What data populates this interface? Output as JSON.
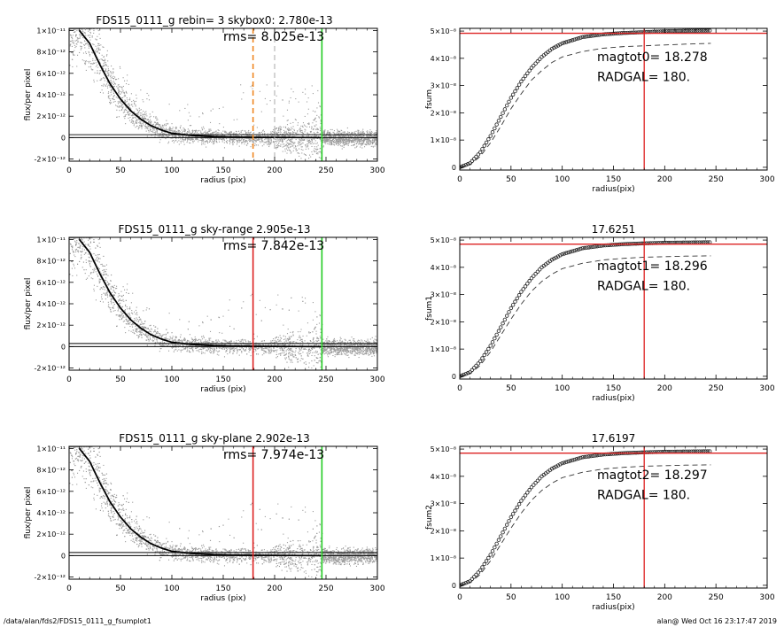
{
  "footer": {
    "left": "/data/alan/fds2/FDS15_0111_g_fsumplot1",
    "right": "alan@  Wed Oct 16 23:17:47 2019"
  },
  "colors": {
    "scatter": "#9a9a9a",
    "profile": "#000000",
    "red_line": "#dd2222",
    "orange_line": "#ee8822",
    "green_line": "#22cc22",
    "gray_dash": "#aaaaaa"
  },
  "chart_data": [
    {
      "type": "scatter",
      "title": "FDS15_0111_g rebin= 3    skybox0:  2.780e-13",
      "annotation": "rms= 8.025e-13",
      "xlabel": "radius (pix)",
      "ylabel": "flux/per pixel",
      "xlim": [
        0,
        300
      ],
      "ylim": [
        -2.2e-12,
        1.02e-11
      ],
      "xticks": [
        "0",
        "50",
        "100",
        "150",
        "200",
        "250",
        "300"
      ],
      "yticks": [
        "-2×10⁻¹²",
        "0",
        "2×10⁻¹²",
        "4×10⁻¹²",
        "6×10⁻¹²",
        "8×10⁻¹²",
        "1×10⁻¹¹"
      ],
      "ytick_values": [
        -2e-12,
        0,
        2e-12,
        4e-12,
        6e-12,
        8e-12,
        1e-11
      ],
      "sky_level": 2.78e-13,
      "profile": {
        "x": [
          10,
          20,
          30,
          40,
          50,
          60,
          70,
          80,
          90,
          100,
          120,
          140,
          160,
          180,
          200,
          220,
          245
        ],
        "y": [
          1e-11,
          8.8e-12,
          6.8e-12,
          5e-12,
          3.6e-12,
          2.5e-12,
          1.7e-12,
          1.1e-12,
          7e-13,
          4e-13,
          2e-13,
          1e-13,
          5e-14,
          3e-14,
          2e-14,
          1e-14,
          0
        ]
      },
      "vlines": [
        {
          "x": 179,
          "style": "dashed-orange"
        },
        {
          "x": 200,
          "style": "dashed-gray"
        },
        {
          "x": 246,
          "style": "solid-green"
        }
      ]
    },
    {
      "type": "line",
      "title": "",
      "xlabel": "radius(pix)",
      "ylabel": "fsum",
      "xlim": [
        0,
        300
      ],
      "ylim": [
        -1e-09,
        5.1e-08
      ],
      "xticks": [
        "0",
        "50",
        "100",
        "150",
        "200",
        "250",
        "300"
      ],
      "yticks": [
        "0",
        "1×10⁻⁸",
        "2×10⁻⁸",
        "3×10⁻⁸",
        "4×10⁻⁸",
        "5×10⁻⁸"
      ],
      "ytick_values": [
        0,
        1e-08,
        2e-08,
        3e-08,
        4e-08,
        5e-08
      ],
      "texts": [
        "magtot0=  18.278",
        "RADGAL=    180."
      ],
      "hline": 4.92e-08,
      "vline": 180,
      "curve": {
        "x": [
          0,
          10,
          20,
          30,
          40,
          50,
          60,
          70,
          80,
          90,
          100,
          120,
          140,
          160,
          180,
          200,
          220,
          245
        ],
        "y": [
          0,
          1.5e-09,
          5.5e-09,
          1.15e-08,
          1.85e-08,
          2.55e-08,
          3.15e-08,
          3.65e-08,
          4.05e-08,
          4.35e-08,
          4.55e-08,
          4.78e-08,
          4.88e-08,
          4.93e-08,
          4.96e-08,
          4.99e-08,
          5.01e-08,
          5.02e-08
        ]
      },
      "dashed": {
        "x": [
          0,
          10,
          20,
          30,
          40,
          50,
          60,
          70,
          80,
          90,
          100,
          120,
          140,
          160,
          180,
          200,
          220,
          245
        ],
        "y": [
          0,
          1e-09,
          4e-09,
          9e-09,
          1.5e-08,
          2.15e-08,
          2.7e-08,
          3.2e-08,
          3.55e-08,
          3.85e-08,
          4.05e-08,
          4.25e-08,
          4.37e-08,
          4.43e-08,
          4.46e-08,
          4.49e-08,
          4.52e-08,
          4.55e-08
        ]
      }
    },
    {
      "type": "scatter",
      "title": "FDS15_0111_g sky-range  2.905e-13",
      "annotation": "rms= 7.842e-13",
      "xlabel": "radius (pix)",
      "ylabel": "flux/per pixel",
      "xlim": [
        0,
        300
      ],
      "ylim": [
        -2.2e-12,
        1.02e-11
      ],
      "xticks": [
        "0",
        "50",
        "100",
        "150",
        "200",
        "250",
        "300"
      ],
      "yticks": [
        "-2×10⁻¹²",
        "0",
        "2×10⁻¹²",
        "4×10⁻¹²",
        "6×10⁻¹²",
        "8×10⁻¹²",
        "1×10⁻¹¹"
      ],
      "ytick_values": [
        -2e-12,
        0,
        2e-12,
        4e-12,
        6e-12,
        8e-12,
        1e-11
      ],
      "sky_level": 2.905e-13,
      "profile": {
        "x": [
          10,
          20,
          30,
          40,
          50,
          60,
          70,
          80,
          90,
          100,
          120,
          140,
          160,
          180,
          200,
          220,
          245
        ],
        "y": [
          1e-11,
          8.8e-12,
          6.8e-12,
          5e-12,
          3.6e-12,
          2.5e-12,
          1.7e-12,
          1.1e-12,
          7e-13,
          4e-13,
          2e-13,
          1e-13,
          5e-14,
          3e-14,
          2e-14,
          1e-14,
          0
        ]
      },
      "vlines": [
        {
          "x": 179,
          "style": "solid-red"
        },
        {
          "x": 246,
          "style": "solid-green"
        }
      ]
    },
    {
      "type": "line",
      "title": "17.6251",
      "xlabel": "radius(pix)",
      "ylabel": "fsum1",
      "xlim": [
        0,
        300
      ],
      "ylim": [
        -1e-09,
        5.1e-08
      ],
      "xticks": [
        "0",
        "50",
        "100",
        "150",
        "200",
        "250",
        "300"
      ],
      "yticks": [
        "0",
        "1×10⁻⁸",
        "2×10⁻⁸",
        "3×10⁻⁸",
        "4×10⁻⁸",
        "5×10⁻⁸"
      ],
      "ytick_values": [
        0,
        1e-08,
        2e-08,
        3e-08,
        4e-08,
        5e-08
      ],
      "texts": [
        "magtot1=  18.296",
        "RADGAL=    180."
      ],
      "hline": 4.85e-08,
      "vline": 180,
      "curve": {
        "x": [
          0,
          10,
          20,
          30,
          40,
          50,
          60,
          70,
          80,
          90,
          100,
          120,
          140,
          160,
          180,
          200,
          220,
          245
        ],
        "y": [
          0,
          1.5e-09,
          5.5e-09,
          1.12e-08,
          1.8e-08,
          2.5e-08,
          3.1e-08,
          3.6e-08,
          4e-08,
          4.28e-08,
          4.48e-08,
          4.7e-08,
          4.8e-08,
          4.85e-08,
          4.88e-08,
          4.9e-08,
          4.91e-08,
          4.92e-08
        ]
      },
      "dashed": {
        "x": [
          0,
          10,
          20,
          30,
          40,
          50,
          60,
          70,
          80,
          90,
          100,
          120,
          140,
          160,
          180,
          200,
          220,
          245
        ],
        "y": [
          0,
          1e-09,
          4e-09,
          9e-09,
          1.5e-08,
          2.1e-08,
          2.65e-08,
          3.12e-08,
          3.48e-08,
          3.75e-08,
          3.95e-08,
          4.15e-08,
          4.27e-08,
          4.33e-08,
          4.37e-08,
          4.39e-08,
          4.41e-08,
          4.42e-08
        ]
      }
    },
    {
      "type": "scatter",
      "title": "FDS15_0111_g sky-plane  2.902e-13",
      "annotation": "rms= 7.974e-13",
      "xlabel": "radius (pix)",
      "ylabel": "flux/per pixel",
      "xlim": [
        0,
        300
      ],
      "ylim": [
        -2.2e-12,
        1.02e-11
      ],
      "xticks": [
        "0",
        "50",
        "100",
        "150",
        "200",
        "250",
        "300"
      ],
      "yticks": [
        "-2×10⁻¹²",
        "0",
        "2×10⁻¹²",
        "4×10⁻¹²",
        "6×10⁻¹²",
        "8×10⁻¹²",
        "1×10⁻¹¹"
      ],
      "ytick_values": [
        -2e-12,
        0,
        2e-12,
        4e-12,
        6e-12,
        8e-12,
        1e-11
      ],
      "sky_level": 2.902e-13,
      "profile": {
        "x": [
          10,
          20,
          30,
          40,
          50,
          60,
          70,
          80,
          90,
          100,
          120,
          140,
          160,
          180,
          200,
          220,
          245
        ],
        "y": [
          1e-11,
          8.8e-12,
          6.8e-12,
          5e-12,
          3.6e-12,
          2.5e-12,
          1.7e-12,
          1.1e-12,
          7e-13,
          4e-13,
          2e-13,
          1e-13,
          5e-14,
          3e-14,
          2e-14,
          1e-14,
          0
        ]
      },
      "vlines": [
        {
          "x": 179,
          "style": "solid-red"
        },
        {
          "x": 246,
          "style": "solid-green"
        }
      ]
    },
    {
      "type": "line",
      "title": "17.6197",
      "xlabel": "radius(pix)",
      "ylabel": "fsum2",
      "xlim": [
        0,
        300
      ],
      "ylim": [
        -1e-09,
        5.1e-08
      ],
      "xticks": [
        "0",
        "50",
        "100",
        "150",
        "200",
        "250",
        "300"
      ],
      "yticks": [
        "0",
        "1×10⁻⁸",
        "2×10⁻⁸",
        "3×10⁻⁸",
        "4×10⁻⁸",
        "5×10⁻⁸"
      ],
      "ytick_values": [
        0,
        1e-08,
        2e-08,
        3e-08,
        4e-08,
        5e-08
      ],
      "texts": [
        "magtot2=  18.297",
        "RADGAL=    180."
      ],
      "hline": 4.85e-08,
      "vline": 180,
      "curve": {
        "x": [
          0,
          10,
          20,
          30,
          40,
          50,
          60,
          70,
          80,
          90,
          100,
          120,
          140,
          160,
          180,
          200,
          220,
          245
        ],
        "y": [
          0,
          1.5e-09,
          5.5e-09,
          1.12e-08,
          1.8e-08,
          2.5e-08,
          3.1e-08,
          3.6e-08,
          4e-08,
          4.28e-08,
          4.48e-08,
          4.7e-08,
          4.8e-08,
          4.85e-08,
          4.88e-08,
          4.9e-08,
          4.91e-08,
          4.92e-08
        ]
      },
      "dashed": {
        "x": [
          0,
          10,
          20,
          30,
          40,
          50,
          60,
          70,
          80,
          90,
          100,
          120,
          140,
          160,
          180,
          200,
          220,
          245
        ],
        "y": [
          0,
          1e-09,
          4e-09,
          9e-09,
          1.5e-08,
          2.1e-08,
          2.65e-08,
          3.12e-08,
          3.48e-08,
          3.75e-08,
          3.95e-08,
          4.15e-08,
          4.27e-08,
          4.33e-08,
          4.37e-08,
          4.39e-08,
          4.41e-08,
          4.42e-08
        ]
      }
    }
  ]
}
